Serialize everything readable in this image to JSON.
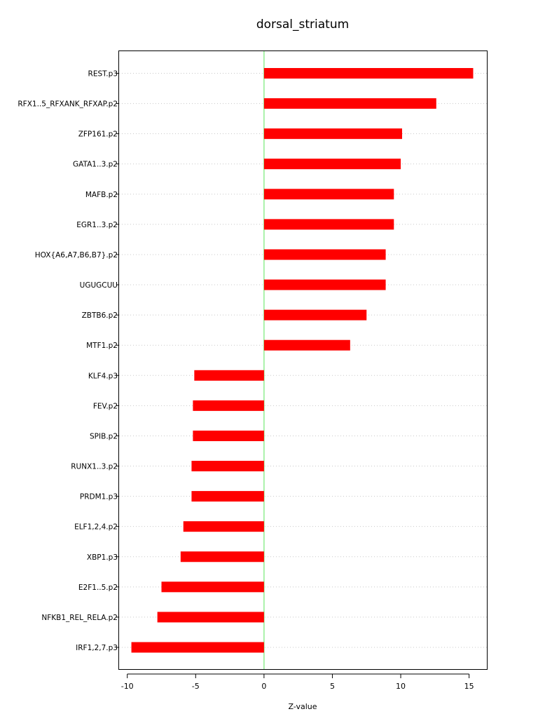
{
  "chart_data": {
    "type": "bar",
    "orientation": "horizontal",
    "title": "dorsal_striatum",
    "xlabel": "Z-value",
    "ylabel": "",
    "xlim": [
      -10.6,
      16.3
    ],
    "xticks": [
      -10,
      -5,
      0,
      5,
      10,
      15
    ],
    "xtick_labels": [
      "-10",
      "-5",
      "0",
      "5",
      "10",
      "15"
    ],
    "grid": "dotted horizontal",
    "zero_line": true,
    "colors": {
      "bar": "#ff0000",
      "zero_line": "#90ee90",
      "grid": "#c8c8c8",
      "axis": "#000000"
    },
    "categories": [
      "REST.p3",
      "RFX1..5_RFXANK_RFXAP.p2",
      "ZFP161.p2",
      "GATA1..3.p2",
      "MAFB.p2",
      "EGR1..3.p2",
      "HOX{A6,A7,B6,B7}.p2",
      "UGUGCUU",
      "ZBTB6.p2",
      "MTF1.p2",
      "KLF4.p3",
      "FEV.p2",
      "SPIB.p2",
      "RUNX1..3.p2",
      "PRDM1.p3",
      "ELF1,2,4.p2",
      "XBP1.p3",
      "E2F1..5.p2",
      "NFKB1_REL_RELA.p2",
      "IRF1,2,7.p3"
    ],
    "values": [
      15.3,
      12.6,
      10.1,
      10.0,
      9.5,
      9.5,
      8.9,
      8.9,
      7.5,
      6.3,
      -5.1,
      -5.2,
      -5.2,
      -5.3,
      -5.3,
      -5.9,
      -6.1,
      -7.5,
      -7.8,
      -9.7
    ]
  }
}
